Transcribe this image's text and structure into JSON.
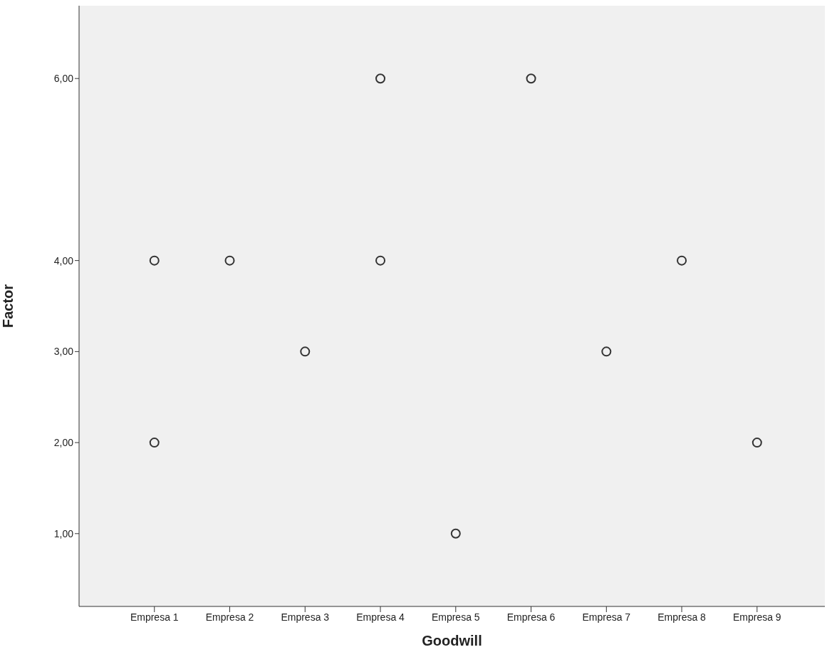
{
  "chart_data": {
    "type": "scatter",
    "xlabel": "Goodwill",
    "ylabel": "Factor",
    "categories": [
      "Empresa 1",
      "Empresa 2",
      "Empresa 3",
      "Empresa 4",
      "Empresa 5",
      "Empresa 6",
      "Empresa 7",
      "Empresa 8",
      "Empresa 9"
    ],
    "series": [
      {
        "color": "#333333",
        "values": [
          4,
          4,
          3,
          6,
          1,
          6,
          3,
          4,
          2
        ]
      },
      {
        "color": "#333333",
        "values": [
          2,
          null,
          null,
          4,
          null,
          null,
          null,
          null,
          null
        ]
      }
    ],
    "ylim": [
      0.2,
      6.8
    ],
    "yticks": [
      {
        "value": 1,
        "label": "1,00"
      },
      {
        "value": 2,
        "label": "2,00"
      },
      {
        "value": 3,
        "label": "3,00"
      },
      {
        "value": 4,
        "label": "4,00"
      },
      {
        "value": 6,
        "label": "6,00"
      }
    ],
    "grid": false,
    "legend": false,
    "marker": "circle"
  }
}
